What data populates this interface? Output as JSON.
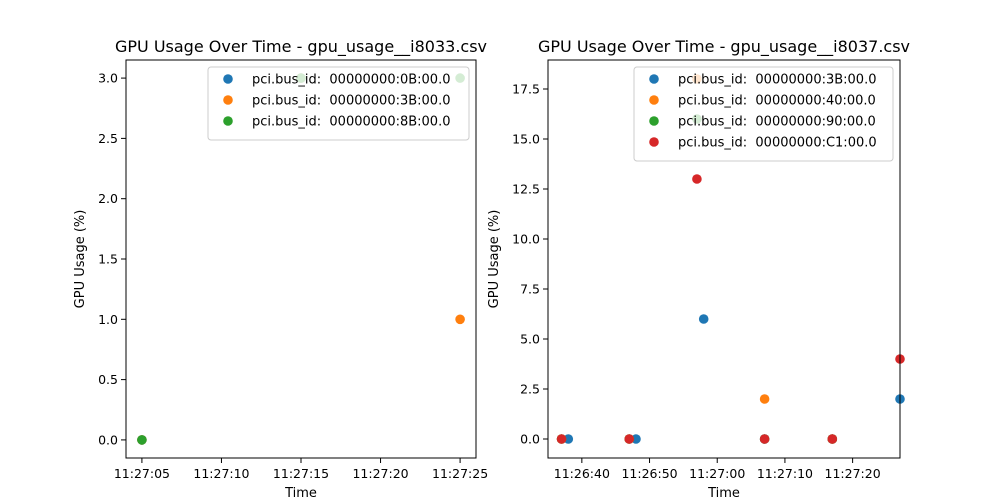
{
  "chart_data": [
    {
      "type": "scatter",
      "title": "GPU Usage Over Time - gpu_usage__i8033.csv",
      "xlabel": "Time",
      "ylabel": "GPU Usage (%)",
      "xlim": [
        "11:27:04",
        "11:27:26"
      ],
      "ylim": [
        -0.15,
        3.15
      ],
      "xticks": [
        "11:27:05",
        "11:27:10",
        "11:27:15",
        "11:27:20",
        "11:27:25"
      ],
      "yticks": [
        "0.0",
        "0.5",
        "1.0",
        "1.5",
        "2.0",
        "2.5",
        "3.0"
      ],
      "grid": false,
      "legend_position": "top-right",
      "series": [
        {
          "name": "pci.bus_id:  00000000:0B:00.0",
          "color": "#1f77b4",
          "points": [
            {
              "x": "11:27:05",
              "y": 0
            },
            {
              "x": "11:27:15",
              "y": 3
            }
          ]
        },
        {
          "name": "pci.bus_id:  00000000:3B:00.0",
          "color": "#ff7f0e",
          "points": [
            {
              "x": "11:27:05",
              "y": 0
            },
            {
              "x": "11:27:15",
              "y": 3
            },
            {
              "x": "11:27:25",
              "y": 1
            }
          ]
        },
        {
          "name": "pci.bus_id:  00000000:8B:00.0",
          "color": "#2ca02c",
          "points": [
            {
              "x": "11:27:05",
              "y": 0
            },
            {
              "x": "11:27:15",
              "y": 3
            },
            {
              "x": "11:27:25",
              "y": 3
            }
          ]
        }
      ]
    },
    {
      "type": "scatter",
      "title": "GPU Usage Over Time - gpu_usage__i8037.csv",
      "xlabel": "Time",
      "ylabel": "GPU Usage (%)",
      "xlim": [
        "11:26:35",
        "11:27:27"
      ],
      "ylim": [
        -0.95,
        18.95
      ],
      "xticks": [
        "11:26:40",
        "11:26:50",
        "11:27:00",
        "11:27:10",
        "11:27:20"
      ],
      "yticks": [
        "0.0",
        "2.5",
        "5.0",
        "7.5",
        "10.0",
        "12.5",
        "15.0",
        "17.5"
      ],
      "grid": false,
      "legend_position": "top-right",
      "series": [
        {
          "name": "pci.bus_id:  00000000:3B:00.0",
          "color": "#1f77b4",
          "points": [
            {
              "x": "11:26:38",
              "y": 0
            },
            {
              "x": "11:26:48",
              "y": 0
            },
            {
              "x": "11:26:58",
              "y": 6
            },
            {
              "x": "11:27:07",
              "y": 0
            },
            {
              "x": "11:27:17",
              "y": 0
            },
            {
              "x": "11:27:27",
              "y": 2
            }
          ]
        },
        {
          "name": "pci.bus_id:  00000000:40:00.0",
          "color": "#ff7f0e",
          "points": [
            {
              "x": "11:26:37",
              "y": 0
            },
            {
              "x": "11:26:47",
              "y": 0
            },
            {
              "x": "11:26:57",
              "y": 18
            },
            {
              "x": "11:27:07",
              "y": 2
            },
            {
              "x": "11:27:17",
              "y": 0
            }
          ]
        },
        {
          "name": "pci.bus_id:  00000000:90:00.0",
          "color": "#2ca02c",
          "points": [
            {
              "x": "11:26:37",
              "y": 0
            },
            {
              "x": "11:26:47",
              "y": 0
            },
            {
              "x": "11:26:57",
              "y": 16
            },
            {
              "x": "11:27:07",
              "y": 0
            },
            {
              "x": "11:27:17",
              "y": 0
            }
          ]
        },
        {
          "name": "pci.bus_id:  00000000:C1:00.0",
          "color": "#d62728",
          "points": [
            {
              "x": "11:26:37",
              "y": 0
            },
            {
              "x": "11:26:47",
              "y": 0
            },
            {
              "x": "11:26:57",
              "y": 13
            },
            {
              "x": "11:27:07",
              "y": 0
            },
            {
              "x": "11:27:17",
              "y": 0
            },
            {
              "x": "11:27:27",
              "y": 4
            }
          ]
        }
      ]
    }
  ]
}
